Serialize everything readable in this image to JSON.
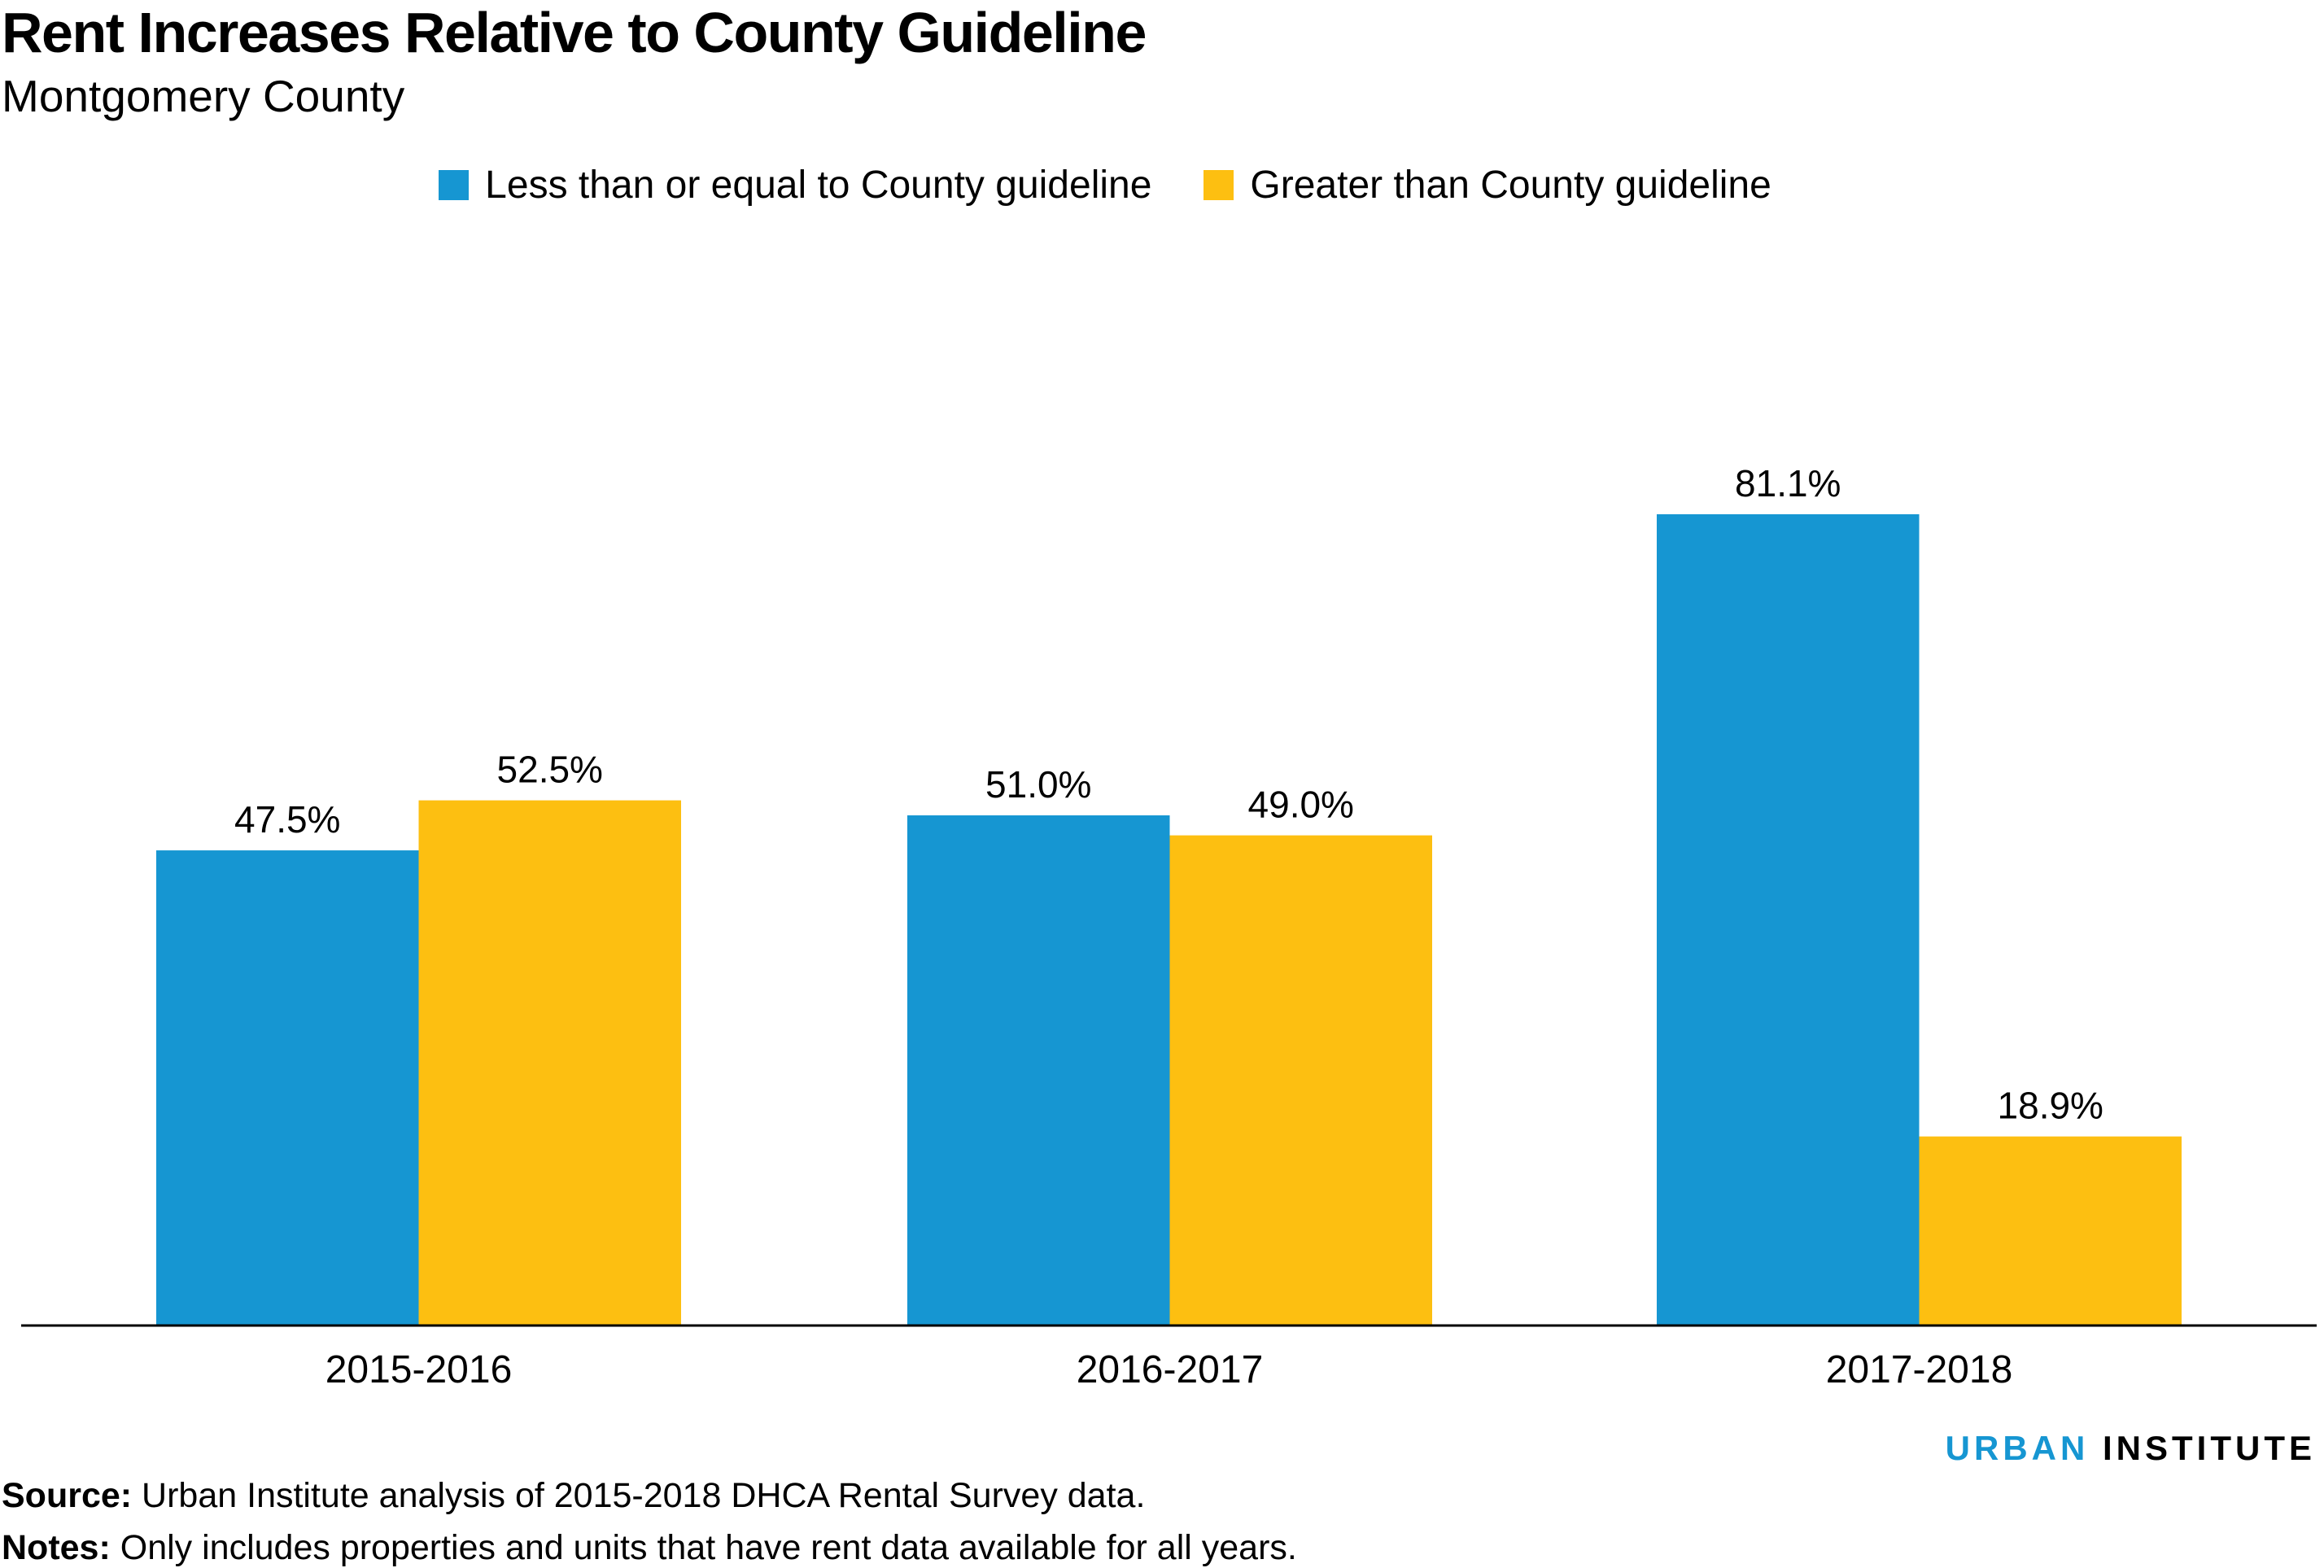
{
  "chart_data": {
    "type": "bar",
    "title": "Rent Increases Relative to County Guideline",
    "subtitle": "Montgomery County",
    "categories": [
      "2015-2016",
      "2016-2017",
      "2017-2018"
    ],
    "series": [
      {
        "name": "Less than or equal to County guideline",
        "color": "#1696d2",
        "values": [
          47.5,
          51.0,
          81.1
        ],
        "labels": [
          "47.5%",
          "51.0%",
          "81.1%"
        ]
      },
      {
        "name": "Greater than County guideline",
        "color": "#fdbf11",
        "values": [
          52.5,
          49.0,
          18.9
        ],
        "labels": [
          "52.5%",
          "49.0%",
          "18.9%"
        ]
      }
    ],
    "ylim": [
      0,
      100
    ],
    "grid": false,
    "legend": "top-center",
    "xlabel": "",
    "ylabel": ""
  },
  "logo": {
    "part1": "URBAN",
    "part2": "INSTITUTE"
  },
  "source": {
    "label": "Source:",
    "text": " Urban Institute analysis of 2015-2018 DHCA Rental Survey data."
  },
  "notes": {
    "label": "Notes:",
    "text": " Only includes properties and units that have rent data available for all years."
  }
}
